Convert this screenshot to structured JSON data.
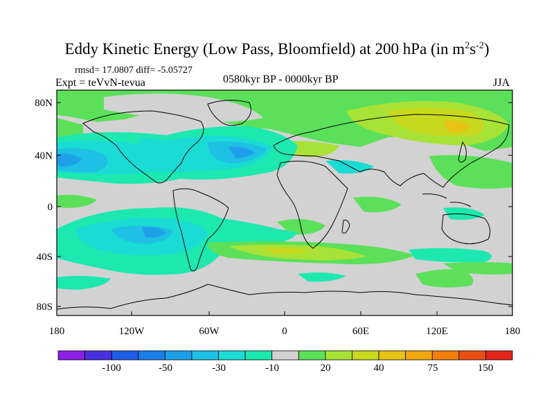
{
  "map": {
    "title_main": "Eddy Kinetic Energy (Low Pass, Bloomfield) at 200 hPa (in m",
    "title_sup1": "2",
    "title_mid": "s",
    "title_sup2": "-2",
    "title_end": ")",
    "stats": "rmsd= 17.0807 diff= -5.05727",
    "experiment": "Expt = teVvN-tevua",
    "period": "0580kyr BP - 0000kyr BP",
    "season": "JJA",
    "lat_ticks": [
      "80N",
      "40N",
      "0",
      "40S",
      "80S"
    ],
    "lon_ticks": [
      "180",
      "120W",
      "60W",
      "0",
      "60E",
      "120E",
      "180"
    ]
  },
  "colorbar": {
    "labels": [
      "-100",
      "-50",
      "-30",
      "-10",
      "20",
      "40",
      "75",
      "150"
    ],
    "colors": [
      "#8a1fe6",
      "#4a2fe0",
      "#1e5de6",
      "#1a7de8",
      "#1ea0e8",
      "#1ec0e3",
      "#1adcd4",
      "#1ce8b0",
      "#d2d2d2",
      "#5ce05a",
      "#a8e236",
      "#c8d81e",
      "#e6c314",
      "#f0a80e",
      "#f27f0c",
      "#ea5016",
      "#e1241c"
    ]
  },
  "legend_colors": {
    "grey": "#d2d2d2",
    "teal": "#1ce8b0",
    "cyan": "#1adcd4",
    "light_blue": "#1ec0e3",
    "blue": "#1ea0e8",
    "green": "#5ce05a",
    "yellow_green": "#a8e236",
    "yellow": "#c8d81e"
  }
}
